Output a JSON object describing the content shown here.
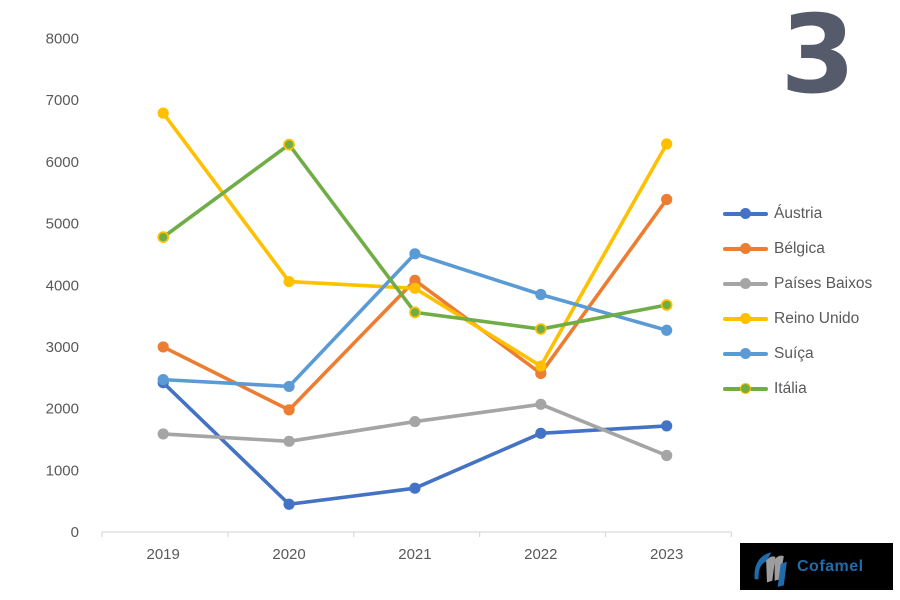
{
  "slide_number": "3",
  "colors": {
    "label": "#595959",
    "axis": "#d9d9d9",
    "slide_number": "#565b6c",
    "background": "#ffffff"
  },
  "logo": {
    "text": "Cofamel",
    "bg": "#000000",
    "text_color": "#1e6cab",
    "mark_blue": "#1e6cab",
    "mark_gray": "#9d9d9d"
  },
  "chart_data": {
    "type": "line",
    "title": "",
    "xlabel": "",
    "ylabel": "",
    "grid": false,
    "legend_position": "right",
    "categories": [
      "2019",
      "2020",
      "2021",
      "2022",
      "2023"
    ],
    "ylim": [
      0,
      8000
    ],
    "ytick_step": 1000,
    "yticks": [
      "0",
      "1000",
      "2000",
      "3000",
      "4000",
      "5000",
      "6000",
      "7000",
      "8000"
    ],
    "series": [
      {
        "name": "Áustria",
        "slug": "austria",
        "color": "#4472C4",
        "values": [
          2420,
          450,
          710,
          1600,
          1720
        ]
      },
      {
        "name": "Bélgica",
        "slug": "belgica",
        "color": "#ED7D31",
        "values": [
          3000,
          1980,
          4080,
          2570,
          5390
        ]
      },
      {
        "name": "Países Baixos",
        "slug": "paises-baixos",
        "color": "#A5A5A5",
        "values": [
          1590,
          1470,
          1790,
          2070,
          1240
        ]
      },
      {
        "name": "Reino Unido",
        "slug": "reino-unido",
        "color": "#FFC000",
        "values": [
          6790,
          4060,
          3950,
          2690,
          6290
        ]
      },
      {
        "name": "Suíça",
        "slug": "suica",
        "color": "#5B9BD5",
        "values": [
          2470,
          2360,
          4510,
          3850,
          3270
        ]
      },
      {
        "name": "Itália",
        "slug": "italia",
        "color": "#70AD47",
        "marker_border": "#FFC000",
        "values": [
          4780,
          6280,
          3560,
          3290,
          3680
        ]
      }
    ]
  }
}
